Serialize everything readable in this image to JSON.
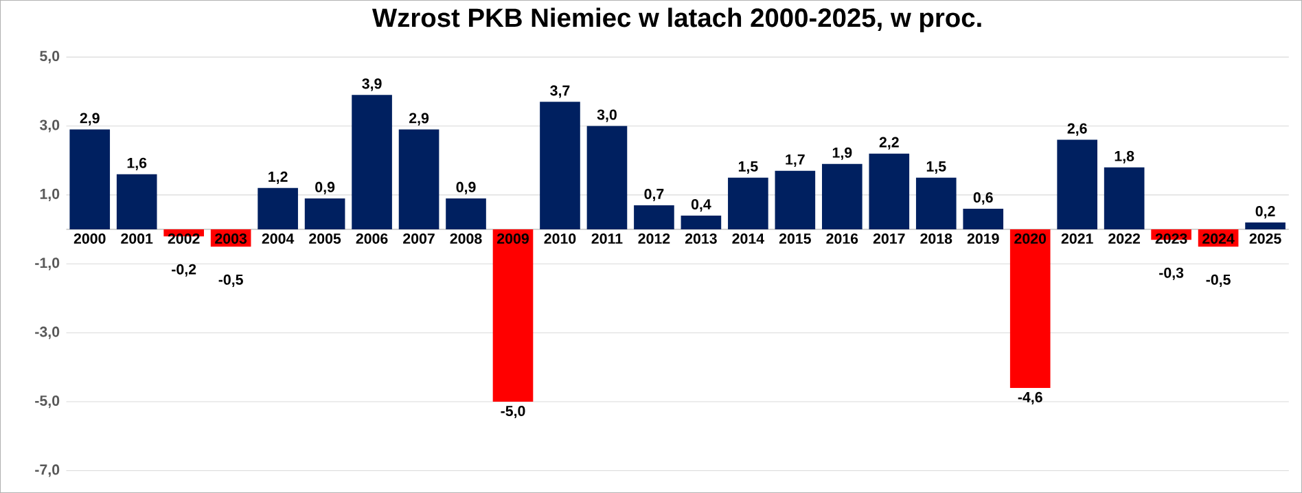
{
  "chart_data": {
    "type": "bar",
    "title": "Wzrost PKB Niemiec w latach 2000-2025, w proc.",
    "categories": [
      "2000",
      "2001",
      "2002",
      "2003",
      "2004",
      "2005",
      "2006",
      "2007",
      "2008",
      "2009",
      "2010",
      "2011",
      "2012",
      "2013",
      "2014",
      "2015",
      "2016",
      "2017",
      "2018",
      "2019",
      "2020",
      "2021",
      "2022",
      "2023",
      "2024",
      "2025"
    ],
    "values": [
      2.9,
      1.6,
      -0.2,
      -0.5,
      1.2,
      0.9,
      3.9,
      2.9,
      0.9,
      -5.0,
      3.7,
      3.0,
      0.7,
      0.4,
      1.5,
      1.7,
      1.9,
      2.2,
      1.5,
      0.6,
      -4.6,
      2.6,
      1.8,
      -0.3,
      -0.5,
      0.2
    ],
    "value_labels": [
      "2,9",
      "1,6",
      "-0,2",
      "-0,5",
      "1,2",
      "0,9",
      "3,9",
      "2,9",
      "0,9",
      "-5,0",
      "3,7",
      "3,0",
      "0,7",
      "0,4",
      "1,5",
      "1,7",
      "1,9",
      "2,2",
      "1,5",
      "0,6",
      "-4,6",
      "2,6",
      "1,8",
      "-0,3",
      "-0,5",
      "0,2"
    ],
    "colors": [
      "#002060",
      "#002060",
      "#ff0000",
      "#ff0000",
      "#002060",
      "#002060",
      "#002060",
      "#002060",
      "#002060",
      "#ff0000",
      "#002060",
      "#002060",
      "#002060",
      "#002060",
      "#002060",
      "#002060",
      "#002060",
      "#002060",
      "#002060",
      "#002060",
      "#ff0000",
      "#002060",
      "#002060",
      "#ff0000",
      "#ff0000",
      "#002060"
    ],
    "ylim": [
      -7,
      5
    ],
    "yticks": [
      {
        "value": -7,
        "label": "-7,0"
      },
      {
        "value": -5,
        "label": "-5,0"
      },
      {
        "value": -3,
        "label": "-3,0"
      },
      {
        "value": -1,
        "label": "-1,0"
      },
      {
        "value": 1,
        "label": "1,0"
      },
      {
        "value": 3,
        "label": "3,0"
      },
      {
        "value": 5,
        "label": "5,0"
      }
    ],
    "grid": "y"
  }
}
